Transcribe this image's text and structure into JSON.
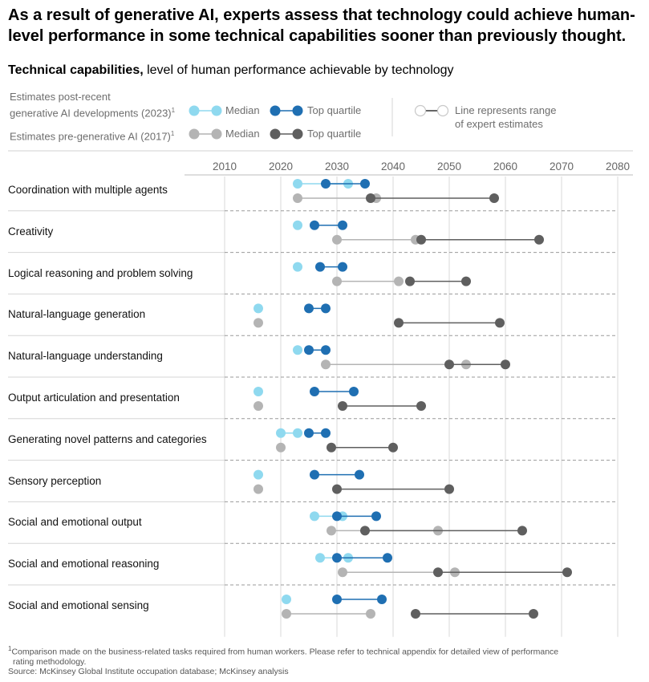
{
  "headline": "As a result of generative AI, experts assess that technology could achieve human-level performance in some technical capabilities sooner than previously thought.",
  "subtitle_bold": "Technical capabilities,",
  "subtitle_rest": " level of human performance achievable by technology",
  "legend": {
    "post_label_line1": "Estimates post-recent",
    "post_label_line2": "generative AI developments (2023)",
    "post_sup": "1",
    "pre_label": "Estimates pre-generative AI (2017)",
    "pre_sup": "1",
    "median": "Median",
    "top_quartile": "Top quartile",
    "range_line1": "Line represents range",
    "range_line2": "of expert estimates"
  },
  "colors": {
    "median_2023": "#8fd9ef",
    "quartile_2023": "#1f6fb2",
    "median_2017": "#b4b4b4",
    "quartile_2017": "#5f5f5f"
  },
  "footnote": {
    "sup": "1",
    "line1": "Comparison made on the business-related tasks required from human workers. Please refer to technical appendix for detailed view of performance",
    "line2": "rating methodology.",
    "source": "Source: McKinsey Global Institute occupation database; McKinsey analysis"
  },
  "chart_data": {
    "type": "dumbbell",
    "x_ticks": [
      2010,
      2020,
      2030,
      2040,
      2050,
      2060,
      2070,
      2080
    ],
    "xlim": [
      2010,
      2080
    ],
    "series_names": [
      "Median",
      "Top quartile"
    ],
    "categories": [
      {
        "label": "Coordination with multiple agents",
        "y2023": {
          "median": [
            2023,
            2032
          ],
          "top_quartile": [
            2028,
            2035
          ]
        },
        "y2017": {
          "median": [
            2023,
            2037
          ],
          "top_quartile": [
            2036,
            2058
          ]
        }
      },
      {
        "label": "Creativity",
        "y2023": {
          "median": [
            2023
          ],
          "top_quartile": [
            2026,
            2031
          ]
        },
        "y2017": {
          "median": [
            2030,
            2044
          ],
          "top_quartile": [
            2045,
            2066
          ]
        }
      },
      {
        "label": "Logical reasoning and problem solving",
        "y2023": {
          "median": [
            2023
          ],
          "top_quartile": [
            2027,
            2031
          ]
        },
        "y2017": {
          "median": [
            2030,
            2041
          ],
          "top_quartile": [
            2043,
            2053
          ]
        }
      },
      {
        "label": "Natural-language generation",
        "y2023": {
          "median": [
            2016
          ],
          "top_quartile": [
            2025,
            2028
          ]
        },
        "y2017": {
          "median": [
            2016
          ],
          "top_quartile": [
            2041,
            2059
          ]
        }
      },
      {
        "label": "Natural-language understanding",
        "y2023": {
          "median": [
            2023
          ],
          "top_quartile": [
            2025,
            2028
          ]
        },
        "y2017": {
          "median": [
            2028,
            2053
          ],
          "top_quartile": [
            2050,
            2060
          ]
        }
      },
      {
        "label": "Output articulation and presentation",
        "y2023": {
          "median": [
            2016
          ],
          "top_quartile": [
            2026,
            2033
          ]
        },
        "y2017": {
          "median": [
            2016
          ],
          "top_quartile": [
            2031,
            2045
          ]
        }
      },
      {
        "label": "Generating novel patterns and categories",
        "y2023": {
          "median": [
            2020,
            2023
          ],
          "top_quartile": [
            2025,
            2028
          ]
        },
        "y2017": {
          "median": [
            2020
          ],
          "top_quartile": [
            2029,
            2040
          ]
        }
      },
      {
        "label": "Sensory perception",
        "y2023": {
          "median": [
            2016
          ],
          "top_quartile": [
            2026,
            2034
          ]
        },
        "y2017": {
          "median": [
            2016
          ],
          "top_quartile": [
            2030,
            2050
          ]
        }
      },
      {
        "label": "Social and emotional output",
        "y2023": {
          "median": [
            2026,
            2031
          ],
          "top_quartile": [
            2030,
            2037
          ]
        },
        "y2017": {
          "median": [
            2029,
            2048
          ],
          "top_quartile": [
            2035,
            2063
          ]
        }
      },
      {
        "label": "Social and emotional reasoning",
        "y2023": {
          "median": [
            2027,
            2032
          ],
          "top_quartile": [
            2030,
            2039
          ]
        },
        "y2017": {
          "median": [
            2031,
            2051
          ],
          "top_quartile": [
            2048,
            2071
          ]
        }
      },
      {
        "label": "Social and emotional sensing",
        "y2023": {
          "median": [
            2021
          ],
          "top_quartile": [
            2030,
            2038
          ]
        },
        "y2017": {
          "median": [
            2021,
            2036
          ],
          "top_quartile": [
            2044,
            2065
          ]
        }
      }
    ]
  }
}
